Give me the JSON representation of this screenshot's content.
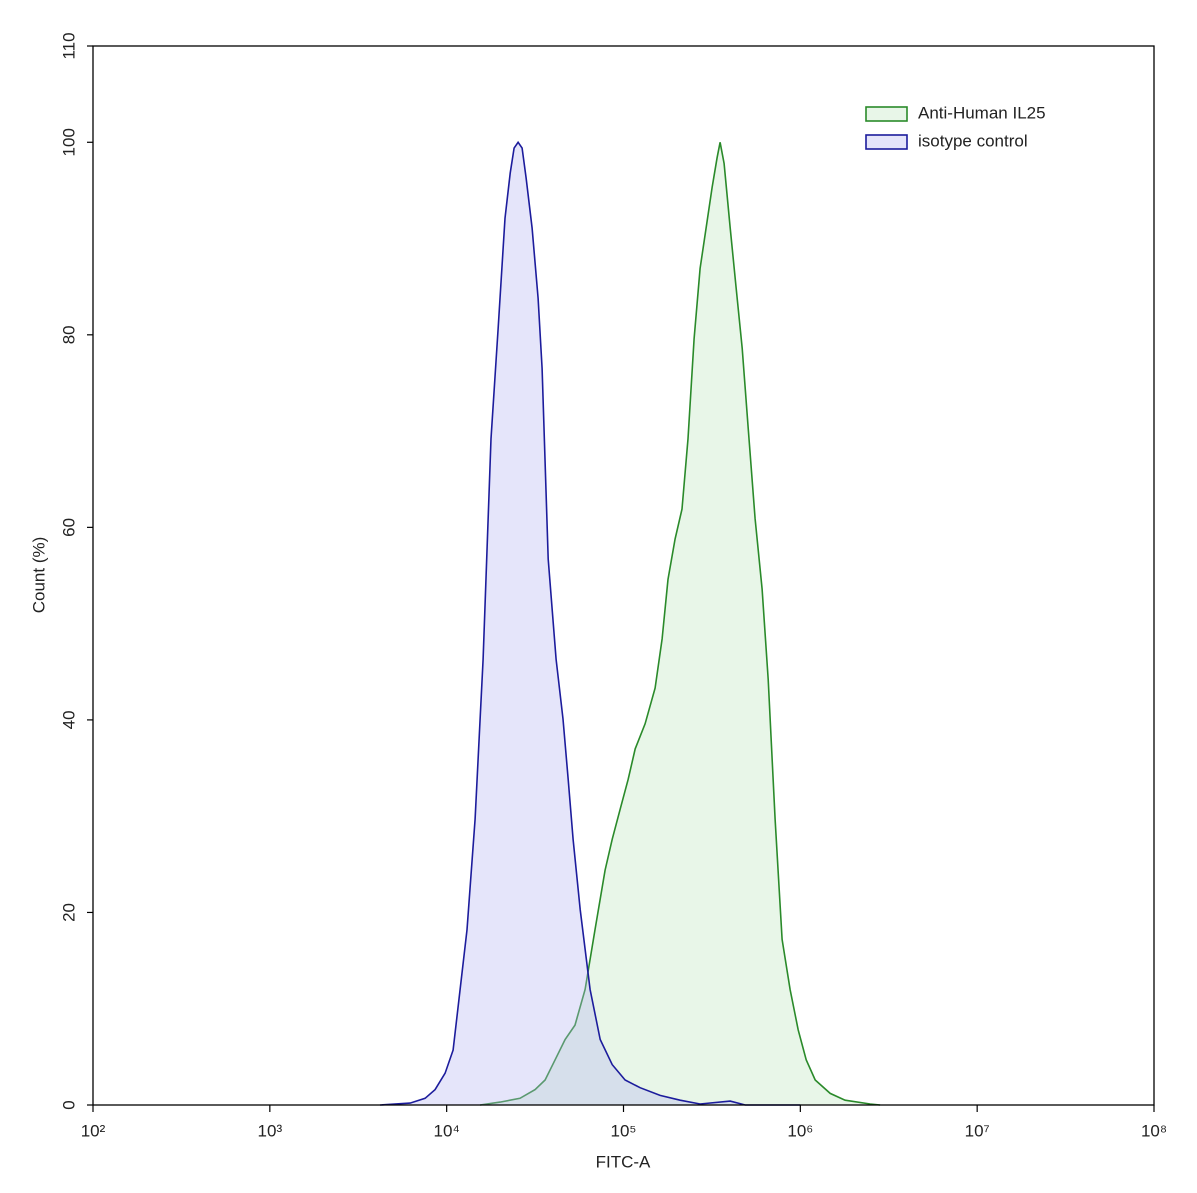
{
  "chart_data": {
    "type": "area",
    "xlabel": "FITC-A",
    "ylabel": "Count  (%)",
    "xscale": "log",
    "xlim": [
      100,
      100000000
    ],
    "xticks": [
      {
        "value": 100,
        "label": "10²"
      },
      {
        "value": 1000,
        "label": "10³"
      },
      {
        "value": 10000,
        "label": "10⁴"
      },
      {
        "value": 100000,
        "label": "10⁵"
      },
      {
        "value": 1000000,
        "label": "10⁶"
      },
      {
        "value": 10000000,
        "label": "10⁷"
      },
      {
        "value": 100000000,
        "label": "10⁸"
      }
    ],
    "ylim": [
      0,
      110
    ],
    "yticks": [
      0,
      20,
      40,
      60,
      80,
      100,
      110
    ],
    "legend": "top-right",
    "series": [
      {
        "name": "Anti-Human IL25",
        "color": "#2a8a2a",
        "fill": "rgba(190,230,190,0.35)",
        "x": [
          15450,
          20050,
          26000,
          31620,
          36040,
          41030,
          46770,
          53210,
          60670,
          69020,
          78700,
          86300,
          95700,
          106200,
          116400,
          132400,
          151000,
          165200,
          178600,
          195900,
          214300,
          231700,
          250600,
          271000,
          293100,
          317000,
          338100,
          351600,
          370700,
          401000,
          433500,
          468800,
          507000,
          554600,
          608100,
          657700,
          719500,
          788800,
          875000,
          972700,
          1079000,
          1213000,
          1476000,
          1791000,
          2483000,
          2825000
        ],
        "values": [
          0,
          0.3,
          0.7,
          1.6,
          2.6,
          4.7,
          6.8,
          8.3,
          12.0,
          18.2,
          24.4,
          27.6,
          30.7,
          33.8,
          37.0,
          39.6,
          43.3,
          48.4,
          54.6,
          58.8,
          61.9,
          69.2,
          79.6,
          86.9,
          91.1,
          95.3,
          98.4,
          100,
          97.8,
          91.1,
          84.9,
          78.6,
          70.3,
          60.9,
          53.6,
          44.2,
          29.7,
          17.2,
          12.0,
          7.8,
          4.7,
          2.6,
          1.2,
          0.5,
          0.1,
          0
        ]
      },
      {
        "name": "isotype control",
        "color": "#1c1c9c",
        "fill": "rgba(180,180,240,0.35)",
        "x": [
          4200,
          6210,
          7550,
          8600,
          9800,
          10870,
          11910,
          13030,
          14480,
          16070,
          17820,
          19540,
          21380,
          22860,
          24050,
          25350,
          26690,
          28120,
          30410,
          32890,
          34670,
          37500,
          41590,
          45500,
          48640,
          51880,
          56880,
          64710,
          73790,
          86300,
          102100,
          124200,
          161000,
          208900,
          271000,
          401000,
          487500,
          998000
        ],
        "values": [
          0,
          0.2,
          0.7,
          1.6,
          3.3,
          5.7,
          12.0,
          18.2,
          29.7,
          46.3,
          69.2,
          80.6,
          92.1,
          96.8,
          99.4,
          100,
          99.4,
          96.3,
          91.1,
          83.8,
          76.5,
          56.7,
          46.3,
          40.1,
          33.8,
          27.6,
          20.3,
          12.0,
          6.8,
          4.2,
          2.6,
          1.8,
          1.0,
          0.5,
          0.1,
          0.4,
          0,
          0
        ]
      }
    ]
  }
}
